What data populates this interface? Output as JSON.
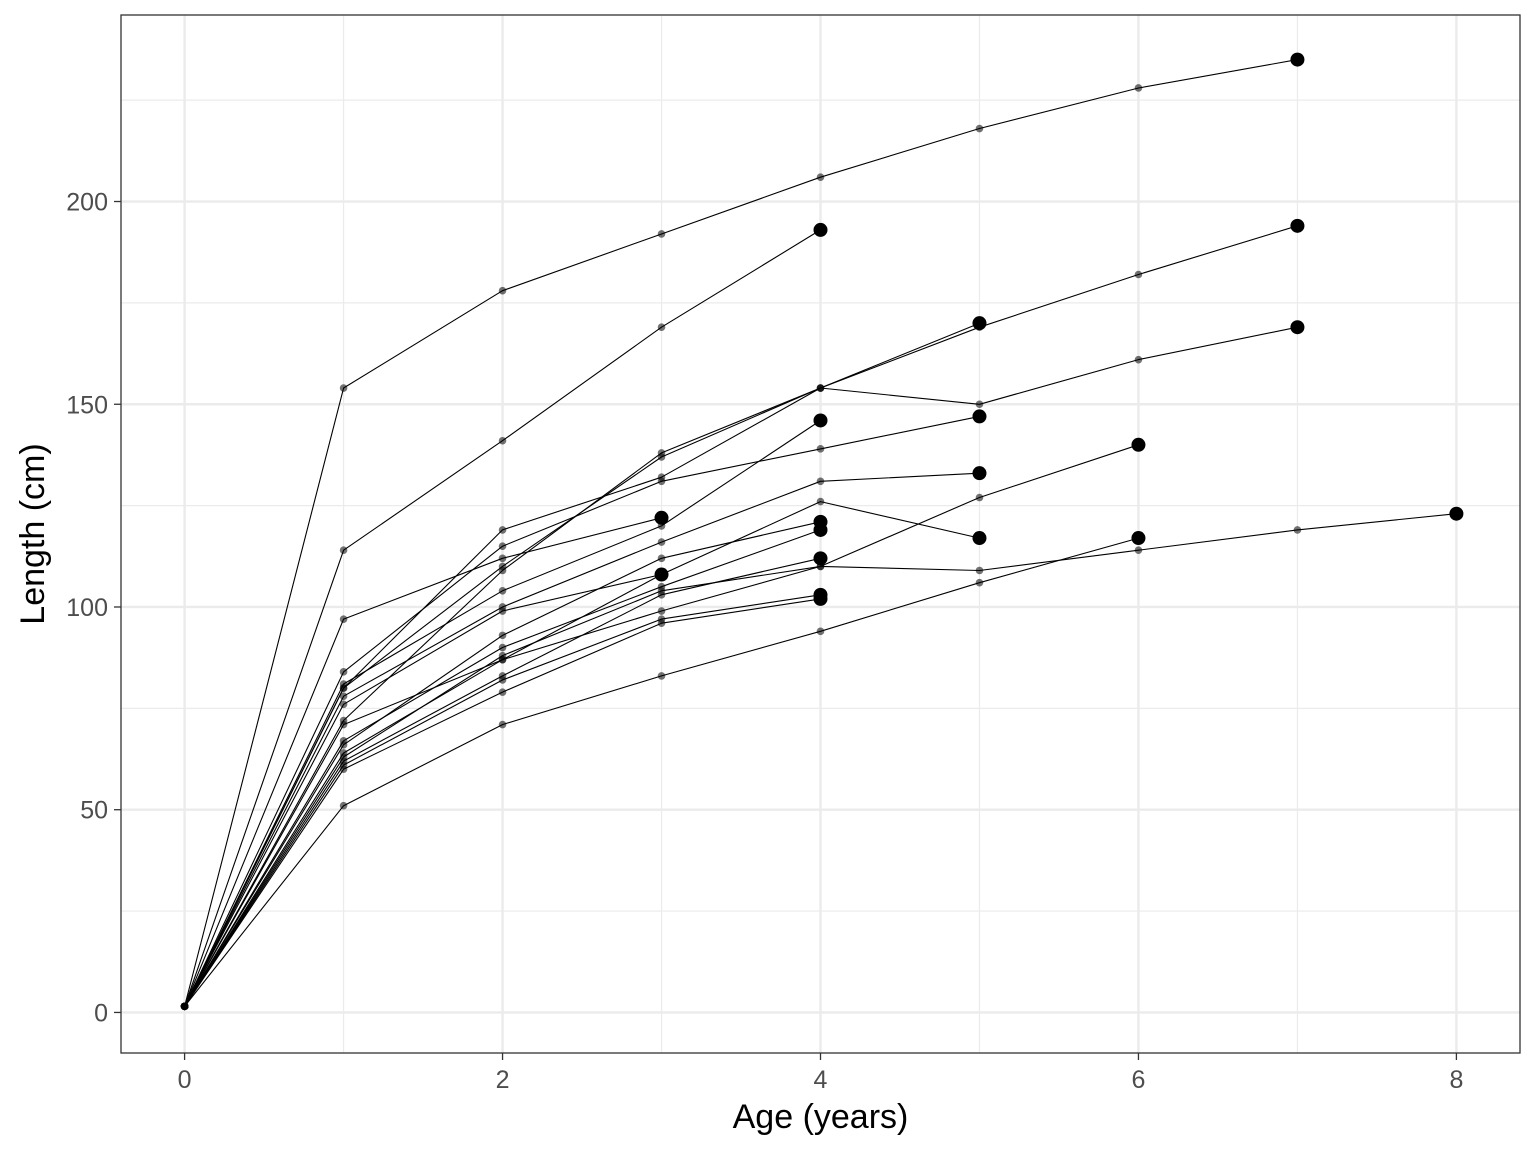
{
  "chart_data": {
    "type": "line",
    "xlabel": "Age (years)",
    "ylabel": "Length (cm)",
    "xlim": [
      -0.4,
      8.4
    ],
    "ylim": [
      -10,
      246
    ],
    "x_ticks": [
      0,
      2,
      4,
      6,
      8
    ],
    "x_tick_labels": [
      "0",
      "2",
      "4",
      "6",
      "8"
    ],
    "y_ticks": [
      0,
      50,
      100,
      150,
      200
    ],
    "y_tick_labels": [
      "0",
      "50",
      "100",
      "150",
      "200"
    ],
    "grid": true,
    "legend": "none",
    "colors": {
      "line": "#000000",
      "point": "#000000",
      "grid": "#ebebeb",
      "panel_border": "#333333"
    },
    "series": [
      {
        "x": [
          0,
          1,
          2,
          3,
          4,
          5,
          6,
          7
        ],
        "y": [
          1.5,
          154,
          178,
          192,
          206,
          218,
          228,
          235
        ]
      },
      {
        "x": [
          0,
          1,
          2,
          3,
          4
        ],
        "y": [
          1.5,
          114,
          141,
          169,
          193
        ]
      },
      {
        "x": [
          0,
          1,
          2,
          3,
          4,
          5,
          6,
          7
        ],
        "y": [
          1.5,
          80,
          110,
          137,
          154,
          169,
          182,
          194
        ]
      },
      {
        "x": [
          0,
          1,
          2,
          3,
          4,
          5
        ],
        "y": [
          1.5,
          72,
          109,
          138,
          154,
          170
        ]
      },
      {
        "x": [
          0,
          1,
          2,
          3,
          4,
          5,
          6,
          7
        ],
        "y": [
          1.5,
          80,
          119,
          132,
          154,
          150,
          161,
          169
        ]
      },
      {
        "x": [
          0,
          1,
          2,
          3,
          4,
          5
        ],
        "y": [
          1.5,
          84,
          115,
          131,
          139,
          147
        ]
      },
      {
        "x": [
          0,
          1,
          2,
          3
        ],
        "y": [
          1.5,
          97,
          112,
          122
        ]
      },
      {
        "x": [
          0,
          1,
          2,
          3,
          4
        ],
        "y": [
          1.5,
          81,
          104,
          120,
          146
        ]
      },
      {
        "x": [
          0,
          1,
          2,
          3,
          4,
          5
        ],
        "y": [
          1.5,
          78,
          100,
          116,
          131,
          133
        ]
      },
      {
        "x": [
          0,
          1,
          2,
          3,
          4,
          5
        ],
        "y": [
          1.5,
          71,
          87,
          108,
          126,
          117
        ]
      },
      {
        "x": [
          0,
          1,
          2,
          3,
          4
        ],
        "y": [
          1.5,
          66,
          93,
          112,
          121
        ]
      },
      {
        "x": [
          0,
          1,
          2,
          3,
          4
        ],
        "y": [
          1.5,
          67,
          90,
          105,
          119
        ]
      },
      {
        "x": [
          0,
          1,
          2,
          3,
          4,
          5,
          6
        ],
        "y": [
          1.5,
          63,
          88,
          104,
          110,
          127,
          140
        ]
      },
      {
        "x": [
          0,
          1,
          2,
          3,
          4
        ],
        "y": [
          1.5,
          62,
          83,
          103,
          112
        ]
      },
      {
        "x": [
          0,
          1,
          2,
          3
        ],
        "y": [
          1.5,
          76,
          99,
          108
        ]
      },
      {
        "x": [
          0,
          1,
          2,
          3,
          4
        ],
        "y": [
          1.5,
          61,
          82,
          97,
          103
        ]
      },
      {
        "x": [
          0,
          1,
          2,
          3,
          4
        ],
        "y": [
          1.5,
          60,
          79,
          96,
          102
        ]
      },
      {
        "x": [
          0,
          1,
          2,
          3,
          4,
          5,
          6,
          7,
          8
        ],
        "y": [
          1.5,
          64,
          87,
          99,
          110,
          109,
          114,
          119,
          123
        ]
      },
      {
        "x": [
          0,
          1,
          2,
          3,
          4,
          5,
          6
        ],
        "y": [
          1.5,
          51,
          71,
          83,
          94,
          106,
          117
        ]
      }
    ]
  }
}
